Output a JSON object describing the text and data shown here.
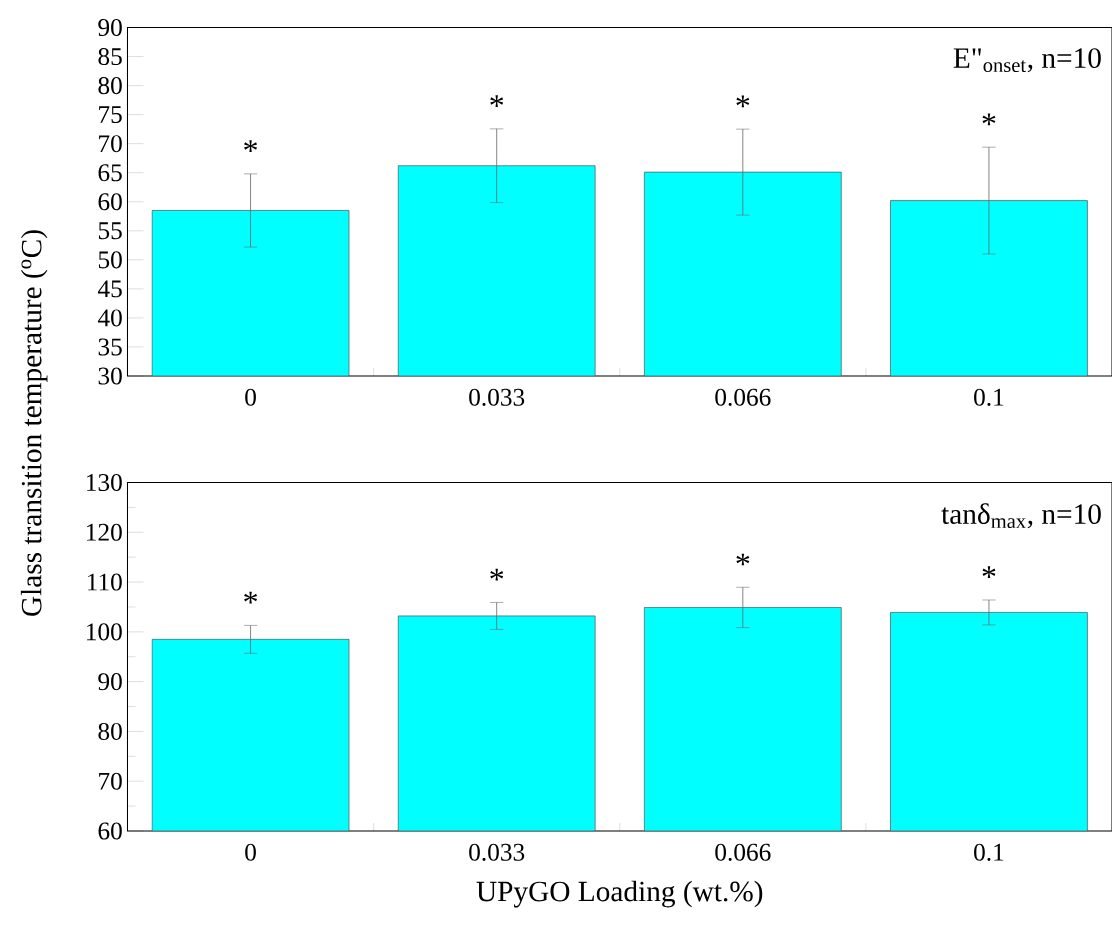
{
  "chart_data": [
    {
      "type": "bar",
      "ylabel": "Glass transition temperature ($^{o}$C)",
      "categories": [
        "0",
        "0.033",
        "0.066",
        "0.1"
      ],
      "series": [
        {
          "color": "#00ffff",
          "values": [
            58.5,
            66.2,
            65.1,
            60.2
          ],
          "errors": [
            6.3,
            6.35,
            7.4,
            9.2
          ]
        }
      ],
      "ylim": [
        30,
        90
      ],
      "yticks": [
        30,
        35,
        40,
        45,
        50,
        55,
        60,
        65,
        70,
        75,
        80,
        85,
        90
      ],
      "annotations": [
        "E\"$_{onset}$, n=10",
        "*",
        "*",
        "*",
        "*"
      ]
    },
    {
      "type": "bar",
      "xlabel": "UPyGO Loading (wt.%)",
      "categories": [
        "0",
        "0.033",
        "0.066",
        "0.1"
      ],
      "series": [
        {
          "color": "#00ffff",
          "values": [
            98.5,
            103.2,
            104.9,
            103.9
          ],
          "errors": [
            2.8,
            2.7,
            4.05,
            2.5
          ]
        }
      ],
      "ylim": [
        60,
        130
      ],
      "yticks": [
        60,
        70,
        80,
        90,
        100,
        110,
        120,
        130
      ],
      "annotations": [
        "tanδ$_{max}$, n=10",
        "*",
        "*",
        "*",
        "*"
      ]
    }
  ]
}
